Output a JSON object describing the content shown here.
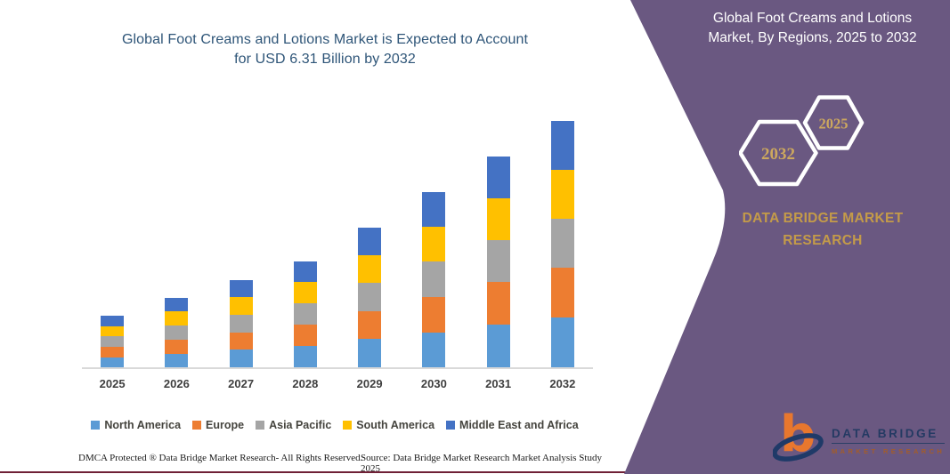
{
  "page": {
    "title_lines": [
      "Global Foot Creams and Lotions Market is Expected to Account",
      "for USD 6.31 Billion by 2032"
    ]
  },
  "chart_data": {
    "type": "bar",
    "stacked": true,
    "title": "Global Foot Creams and Lotions Market is Expected to Account for USD 6.31 Billion by 2032",
    "unit": "USD Billion",
    "categories": [
      "2025",
      "2026",
      "2027",
      "2028",
      "2029",
      "2030",
      "2031",
      "2032"
    ],
    "series": [
      {
        "name": "North America",
        "color": "#5B9BD5",
        "values": [
          0.28,
          0.37,
          0.47,
          0.56,
          0.74,
          0.92,
          1.11,
          1.29
        ]
      },
      {
        "name": "Europe",
        "color": "#ED7D31",
        "values": [
          0.27,
          0.36,
          0.45,
          0.55,
          0.72,
          0.91,
          1.09,
          1.27
        ]
      },
      {
        "name": "Asia Pacific",
        "color": "#A5A5A5",
        "values": [
          0.26,
          0.36,
          0.45,
          0.54,
          0.72,
          0.9,
          1.08,
          1.26
        ]
      },
      {
        "name": "South America",
        "color": "#FFC000",
        "values": [
          0.27,
          0.36,
          0.45,
          0.55,
          0.71,
          0.89,
          1.07,
          1.25
        ]
      },
      {
        "name": "Middle East and Africa",
        "color": "#4472C4",
        "values": [
          0.27,
          0.35,
          0.44,
          0.53,
          0.7,
          0.88,
          1.06,
          1.24
        ]
      }
    ],
    "totals": [
      1.35,
      1.8,
      2.26,
      2.73,
      3.59,
      4.5,
      5.41,
      6.31
    ],
    "ylim": [
      0,
      6.45
    ],
    "y_axis_visible": false,
    "gridlines": false,
    "legend_position": "bottom"
  },
  "side_panel": {
    "title_lines": [
      "Global Foot Creams and Lotions",
      "Market, By Regions, 2025 to 2032"
    ],
    "hexagons": [
      {
        "year": "2032"
      },
      {
        "year": "2025"
      }
    ],
    "brand_lines": [
      "DATA BRIDGE MARKET",
      "RESEARCH"
    ],
    "background_color": "#6A5881",
    "gold_color": "#CDA85E"
  },
  "logo": {
    "name_top": "DATA BRIDGE",
    "name_bottom": "MARKET RESEARCH"
  },
  "footer": {
    "dmca": "DMCA Protected ® Data Bridge Market Research-  All Rights Reserved.",
    "source": "Source: Data Bridge Market Research  Market Analysis Study 2025"
  }
}
